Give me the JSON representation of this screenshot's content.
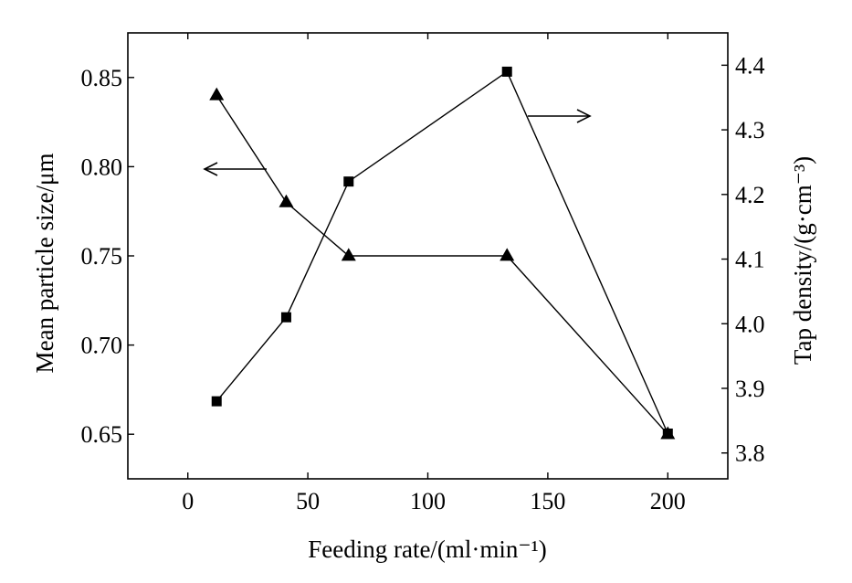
{
  "chart_data": {
    "type": "line",
    "xlabel": "Feeding rate/(ml·min⁻¹)",
    "ylabel_left": "Mean particle size/μm",
    "ylabel_right": "Tap density/(g·cm⁻³)",
    "xlim": [
      -25,
      225
    ],
    "ylim_left": [
      0.625,
      0.875
    ],
    "ylim_right": [
      3.76,
      4.45
    ],
    "x_ticks": [
      0,
      50,
      100,
      150,
      200
    ],
    "y_left_ticks": [
      0.65,
      0.7,
      0.75,
      0.8,
      0.85
    ],
    "y_right_ticks": [
      3.8,
      3.9,
      4.0,
      4.1,
      4.2,
      4.3,
      4.4
    ],
    "x_tick_labels": [
      "0",
      "50",
      "100",
      "150",
      "200"
    ],
    "y_left_tick_labels": [
      "0.65",
      "0.70",
      "0.75",
      "0.80",
      "0.85"
    ],
    "y_right_tick_labels": [
      "3.8",
      "3.9",
      "4.0",
      "4.1",
      "4.2",
      "4.3",
      "4.4"
    ],
    "grid": false,
    "series": [
      {
        "marker": "triangle",
        "axis": "left",
        "x": [
          12,
          41,
          67,
          133,
          200
        ],
        "values": [
          0.84,
          0.78,
          0.75,
          0.75,
          0.65
        ]
      },
      {
        "marker": "square",
        "axis": "right",
        "x": [
          12,
          41,
          67,
          133,
          200
        ],
        "values": [
          3.88,
          4.01,
          4.22,
          4.39,
          3.83
        ]
      }
    ],
    "annotations": [
      {
        "type": "arrow",
        "direction": "left",
        "points_to_axis": "left"
      },
      {
        "type": "arrow",
        "direction": "right",
        "points_to_axis": "right"
      }
    ]
  }
}
